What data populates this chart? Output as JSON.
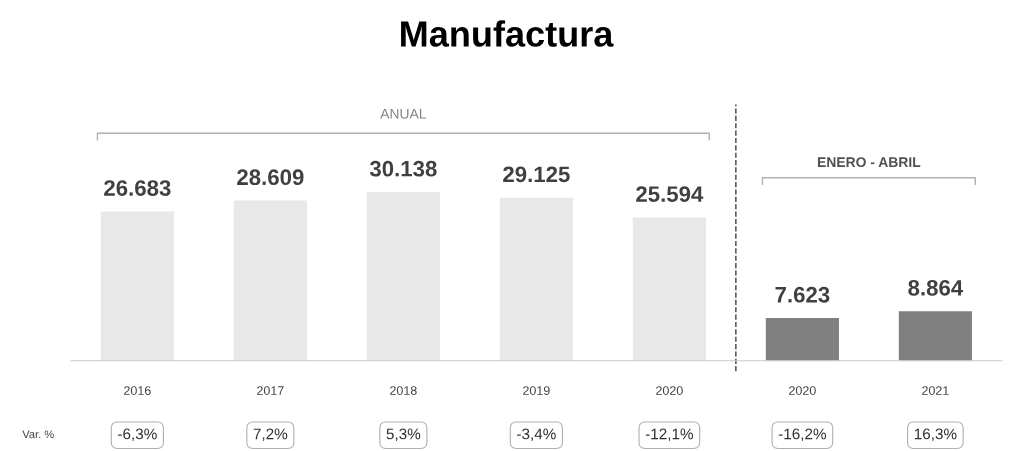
{
  "chart_data": {
    "type": "bar",
    "title": "Manufactura",
    "categories": [
      "2016",
      "2017",
      "2018",
      "2019",
      "2020",
      "2020",
      "2021"
    ],
    "values": [
      26683,
      28609,
      30138,
      29125,
      25594,
      7623,
      8864
    ],
    "value_labels": [
      "26.683",
      "28.609",
      "30.138",
      "29.125",
      "25.594",
      "7.623",
      "8.864"
    ],
    "colors": [
      "#e8e8e8",
      "#e8e8e8",
      "#e8e8e8",
      "#e8e8e8",
      "#e8e8e8",
      "#808080",
      "#808080"
    ],
    "annotations": [
      "ANUAL",
      "ENERO - ABRIL",
      "Var. %",
      "-6,3%",
      "7,2%",
      "5,3%",
      "-3,4%",
      "-12,1%",
      "-16,2%",
      "16,3%"
    ],
    "grid": false,
    "legend": false
  }
}
